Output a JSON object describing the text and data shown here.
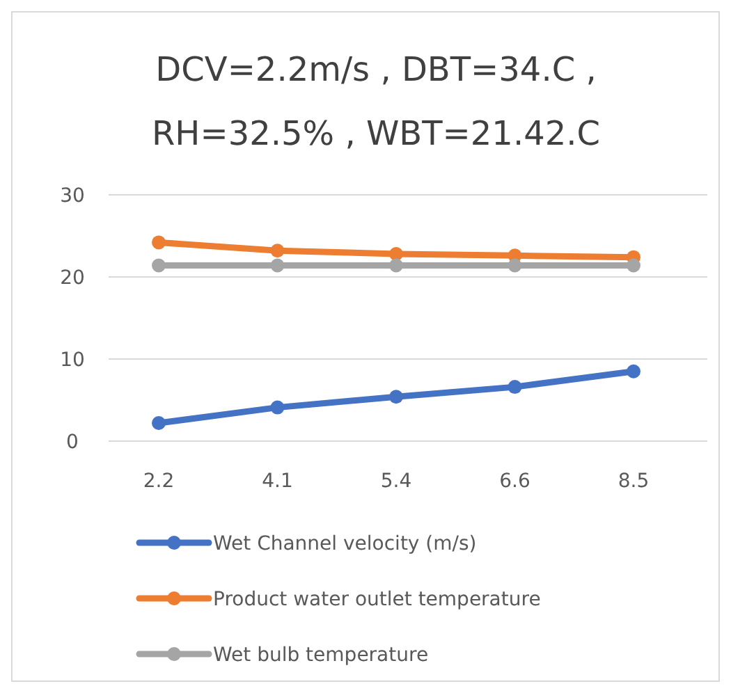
{
  "chart_data": {
    "type": "line",
    "title": "DCV=2.2m/s , DBT=34.C ,\nRH=32.5% , WBT=21.42.C",
    "categories": [
      "2.2",
      "4.1",
      "5.4",
      "6.6",
      "8.5"
    ],
    "series": [
      {
        "name": "Wet Channel velocity (m/s)",
        "color": "#4472c4",
        "values": [
          2.2,
          4.1,
          5.4,
          6.6,
          8.5
        ]
      },
      {
        "name": "Product water outlet temperature",
        "color": "#ed7d31",
        "values": [
          24.2,
          23.2,
          22.8,
          22.6,
          22.4
        ]
      },
      {
        "name": "Wet bulb temperature",
        "color": "#a5a5a5",
        "values": [
          21.4,
          21.4,
          21.4,
          21.4,
          21.4
        ]
      }
    ],
    "ylim": [
      0,
      30
    ],
    "yticks": [
      0,
      10,
      20,
      30
    ],
    "grid": "y",
    "legend": "bottom",
    "marker": "circle",
    "line_style": "solid"
  }
}
